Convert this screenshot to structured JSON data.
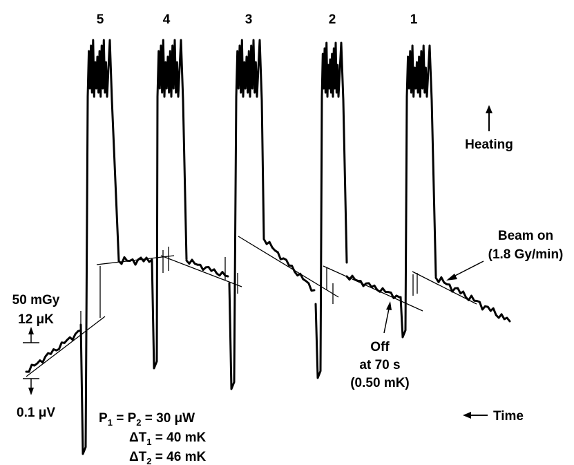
{
  "chart_data": {
    "type": "line",
    "peak_labels": [
      "5",
      "4",
      "3",
      "2",
      "1"
    ],
    "heating": "Heating",
    "time": "Time",
    "beam_on": "Beam on",
    "beam_rate": "(1.8 Gy/min)",
    "off_line1": "Off",
    "off_line2": "at 70 s",
    "off_line3": "(0.50 mK)",
    "dose_label": "50 mGy",
    "temp_label": "12 μK",
    "volt_label": "0.1 μV",
    "power_eq": {
      "p": "P",
      "s1": "1",
      "eq": " = P",
      "s2": "2",
      "rest": " = 30 μW"
    },
    "dt1_eq": {
      "d": "ΔT",
      "s": "1",
      "rest": " = 40 mK"
    },
    "dt2_eq": {
      "d": "ΔT",
      "s": "2",
      "rest": " = 46 mK"
    }
  }
}
